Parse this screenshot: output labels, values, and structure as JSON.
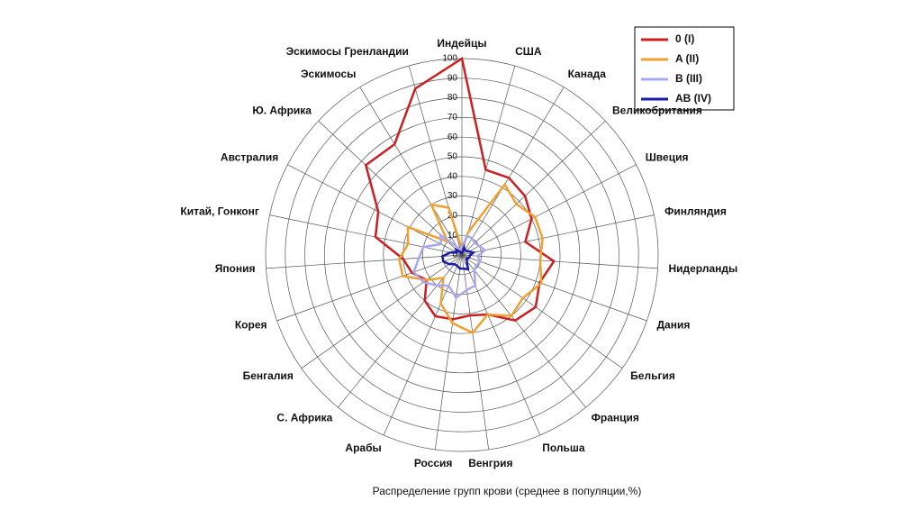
{
  "chart_data": {
    "type": "radar",
    "caption": "Распределение групп крови (среднее в популяции,%)",
    "categories": [
      "Индейцы",
      "США",
      "Канада",
      "Великобритания",
      "Швеция",
      "Финляндия",
      "Нидерланды",
      "Дания",
      "Бельгия",
      "Франция",
      "Польша",
      "Венгрия",
      "Россия",
      "Арабы",
      "С. Африка",
      "Бенгалия",
      "Корея",
      "Япония",
      "Китай, Гонконг",
      "Австралия",
      "Ю. Африка",
      "Эскимосы",
      "Эскимосы Гренландии"
    ],
    "ylim": [
      0,
      100
    ],
    "yticks": [
      0,
      10,
      20,
      30,
      40,
      50,
      60,
      70,
      80,
      90,
      100
    ],
    "grid": true,
    "legend": "top-right",
    "series": [
      {
        "name": "0 (I)",
        "color": "#cc1f1f",
        "values": [
          100,
          45,
          46,
          44,
          40,
          33,
          47,
          42,
          46,
          43,
          33,
          31,
          33,
          34,
          30,
          22,
          27,
          30,
          45,
          48,
          67,
          66,
          88
        ]
      },
      {
        "name": "A (II)",
        "color": "#f0a030",
        "values": [
          3,
          12,
          42,
          38,
          42,
          42,
          40,
          43,
          38,
          40,
          33,
          40,
          35,
          27,
          15,
          22,
          32,
          32,
          28,
          31,
          10,
          30,
          25
        ]
      },
      {
        "name": "B (III)",
        "color": "#a8a8f0",
        "values": [
          4,
          10,
          10,
          9,
          10,
          12,
          8,
          10,
          9,
          10,
          17,
          18,
          22,
          17,
          20,
          24,
          26,
          22,
          20,
          12,
          15,
          5,
          3
        ]
      },
      {
        "name": "AB (IV)",
        "color": "#1a1aa8",
        "values": [
          1,
          4,
          3,
          3,
          4,
          6,
          4,
          4,
          3,
          4,
          8,
          7,
          7,
          6,
          6,
          8,
          10,
          10,
          6,
          3,
          4,
          2,
          1
        ]
      }
    ]
  }
}
